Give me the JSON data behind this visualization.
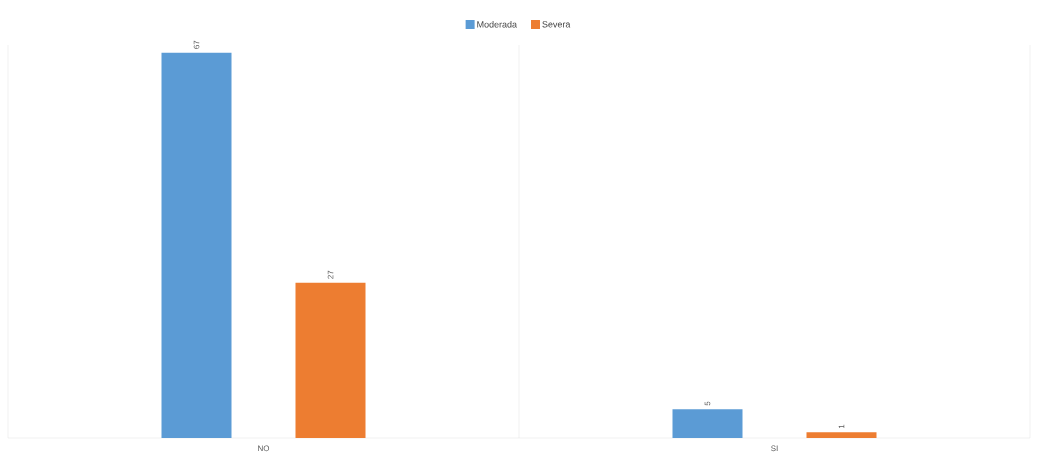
{
  "chart_data": {
    "type": "bar",
    "categories": [
      "NO",
      "SI"
    ],
    "series": [
      {
        "name": "Moderada",
        "color": "#5b9bd5",
        "values": [
          67,
          5
        ]
      },
      {
        "name": "Severa",
        "color": "#ed7d31",
        "values": [
          27,
          1
        ]
      }
    ],
    "data_labels": true,
    "legend": "top"
  }
}
